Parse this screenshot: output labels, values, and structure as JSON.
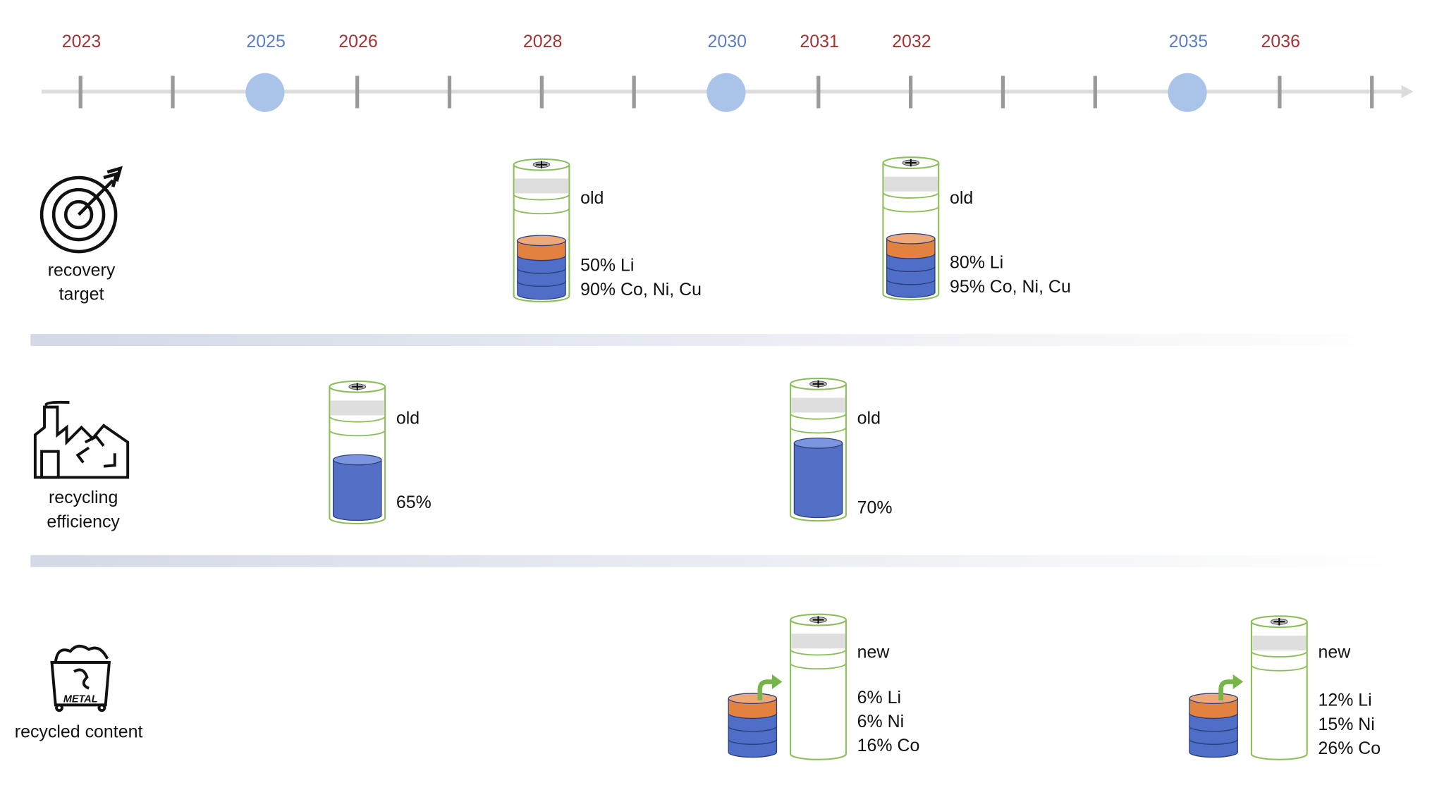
{
  "timeline": {
    "years": [
      {
        "label": "2023",
        "color": "#a33434"
      },
      {
        "label": "2025",
        "color": "#5b7fc4"
      },
      {
        "label": "2026",
        "color": "#a33434"
      },
      {
        "label": "2028",
        "color": "#a33434"
      },
      {
        "label": "2030",
        "color": "#5b7fc4"
      },
      {
        "label": "2031",
        "color": "#a33434"
      },
      {
        "label": "2032",
        "color": "#a33434"
      },
      {
        "label": "2035",
        "color": "#5b7fc4"
      },
      {
        "label": "2036",
        "color": "#a33434"
      }
    ]
  },
  "rows": [
    {
      "label": [
        "recovery",
        "target"
      ],
      "items": [
        {
          "status": "old",
          "lines": [
            "50% Li",
            "90% Co, Ni, Cu"
          ]
        },
        {
          "status": "old",
          "lines": [
            "80% Li",
            "95% Co, Ni, Cu"
          ]
        }
      ]
    },
    {
      "label": [
        "recycling",
        "efficiency"
      ],
      "items": [
        {
          "status": "old",
          "lines": [
            "65%"
          ]
        },
        {
          "status": "old",
          "lines": [
            "70%"
          ]
        }
      ]
    },
    {
      "label": [
        "recycled content"
      ],
      "icon_text": "METAL",
      "items": [
        {
          "status": "new",
          "lines": [
            "6% Li",
            "6% Ni",
            "16% Co"
          ]
        },
        {
          "status": "new",
          "lines": [
            "12% Li",
            "15% Ni",
            "26% Co"
          ]
        }
      ]
    }
  ]
}
